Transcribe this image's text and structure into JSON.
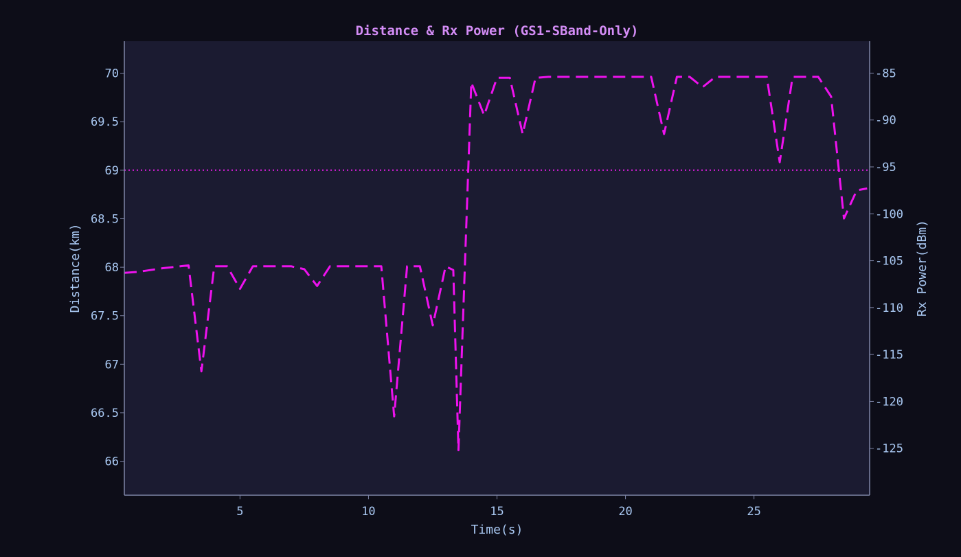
{
  "chart_data": {
    "type": "line",
    "title": "Distance & Rx Power (GS1-SBand-Only)",
    "xlabel": "Time(s)",
    "ylabel_left": "Distance(km)",
    "ylabel_right": "Rx Power(dBm)",
    "x_ticks": [
      5,
      10,
      15,
      20,
      25
    ],
    "y_left_ticks": [
      "66",
      "66.5",
      "67",
      "67.5",
      "68",
      "68.5",
      "69",
      "69.5",
      "70"
    ],
    "y_right_ticks": [
      "-125",
      "-120",
      "-115",
      "-110",
      "-105",
      "-100",
      "-95",
      "-90",
      "-85"
    ],
    "xlim": [
      0.5,
      29.5
    ],
    "ylim_left": [
      65.65,
      70.33
    ],
    "ylim_right": [
      -130.0,
      -81.6
    ],
    "grid": false,
    "series": [
      {
        "axis": "left",
        "style": "dotted",
        "color": "#e81ce8",
        "x": [
          0.5,
          29.5
        ],
        "y": [
          69.0,
          69.0
        ]
      },
      {
        "axis": "right",
        "style": "dashed",
        "color": "#ee12ee",
        "x": [
          0.5,
          1,
          2,
          3,
          3.5,
          4,
          4.5,
          5,
          5.5,
          6,
          7,
          7.5,
          8,
          8.5,
          9,
          10,
          10.5,
          11,
          11.5,
          12,
          12.5,
          13,
          13.3,
          13.5,
          14,
          14.5,
          15,
          15.5,
          16,
          16.5,
          17,
          18,
          19,
          20,
          21,
          21.5,
          22,
          22.5,
          23,
          23.5,
          24,
          25,
          25.5,
          26,
          26.5,
          27,
          27.5,
          28,
          28.5,
          29,
          29.4
        ],
        "y": [
          -106.3,
          -106.2,
          -105.8,
          -105.5,
          -116.8,
          -105.6,
          -105.6,
          -108.0,
          -105.6,
          -105.6,
          -105.6,
          -105.9,
          -107.7,
          -105.6,
          -105.6,
          -105.6,
          -105.6,
          -121.6,
          -105.6,
          -105.6,
          -111.9,
          -105.6,
          -106.0,
          -125.2,
          -86.0,
          -89.5,
          -85.5,
          -85.5,
          -91.5,
          -85.5,
          -85.4,
          -85.4,
          -85.4,
          -85.4,
          -85.4,
          -91.5,
          -85.4,
          -85.4,
          -86.5,
          -85.4,
          -85.4,
          -85.4,
          -85.4,
          -94.5,
          -85.4,
          -85.4,
          -85.4,
          -87.5,
          -100.5,
          -97.5,
          -97.3
        ]
      }
    ]
  },
  "colors": {
    "page_bg": "#0d0d18",
    "plot_bg": "#1b1b31",
    "axis": "#7f86a8",
    "text": "#a9c8f2",
    "title": "#d38cf5"
  }
}
